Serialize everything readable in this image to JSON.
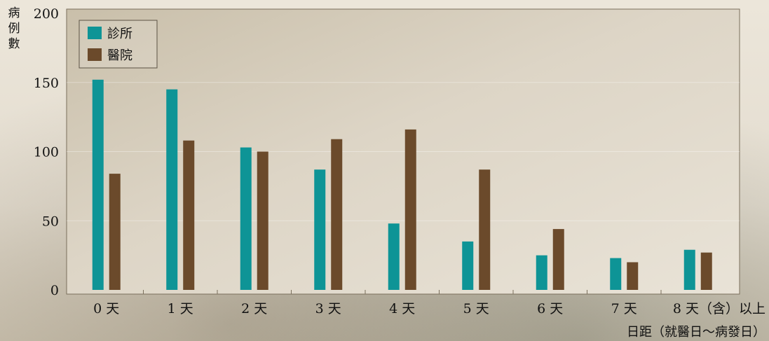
{
  "chart_data": {
    "type": "bar",
    "ylabel": "病例數",
    "xlabel": "日距（就醫日～病發日）",
    "ylim": [
      0,
      200
    ],
    "yticks": [
      0,
      50,
      100,
      150,
      200
    ],
    "categories": [
      "0 天",
      "1 天",
      "2 天",
      "3 天",
      "4 天",
      "5 天",
      "6 天",
      "7 天",
      "8 天（含）以上"
    ],
    "series": [
      {
        "name": "診所",
        "color": "#0e9496",
        "values": [
          152,
          145,
          103,
          87,
          48,
          35,
          25,
          23,
          29
        ]
      },
      {
        "name": "醫院",
        "color": "#6b4a2b",
        "values": [
          84,
          108,
          100,
          109,
          116,
          87,
          44,
          20,
          27
        ]
      }
    ],
    "legend": "top-left",
    "grid": false
  }
}
